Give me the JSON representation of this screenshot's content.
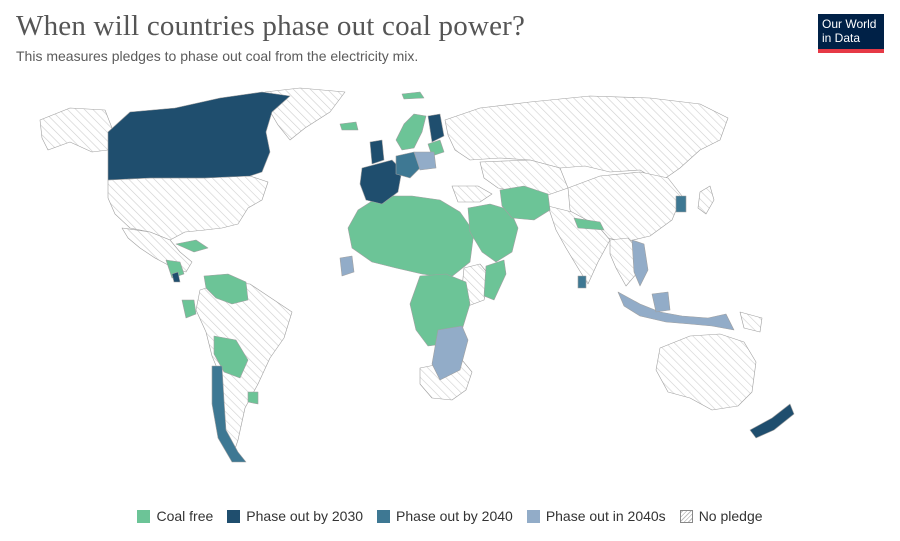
{
  "title": "When will countries phase out coal power?",
  "subtitle": "This measures pledges to phase out coal from the electricity mix.",
  "logo": {
    "line1": "Our World",
    "line2": "in Data"
  },
  "colors": {
    "coal_free": "#6cc497",
    "by_2030": "#1f4e6e",
    "by_2040": "#3e7893",
    "in_2040s": "#92acc8",
    "no_pledge": "#ffffff",
    "hatch": "#cfcfcf",
    "border": "#a0a0a0"
  },
  "legend": [
    {
      "label": "Coal free",
      "color": "#6cc497",
      "hatch": false
    },
    {
      "label": "Phase out by 2030",
      "color": "#1f4e6e",
      "hatch": false
    },
    {
      "label": "Phase out by 2040",
      "color": "#3e7893",
      "hatch": false
    },
    {
      "label": "Phase out in 2040s",
      "color": "#92acc8",
      "hatch": false
    },
    {
      "label": "No pledge",
      "color": "#ffffff",
      "hatch": true
    }
  ]
}
